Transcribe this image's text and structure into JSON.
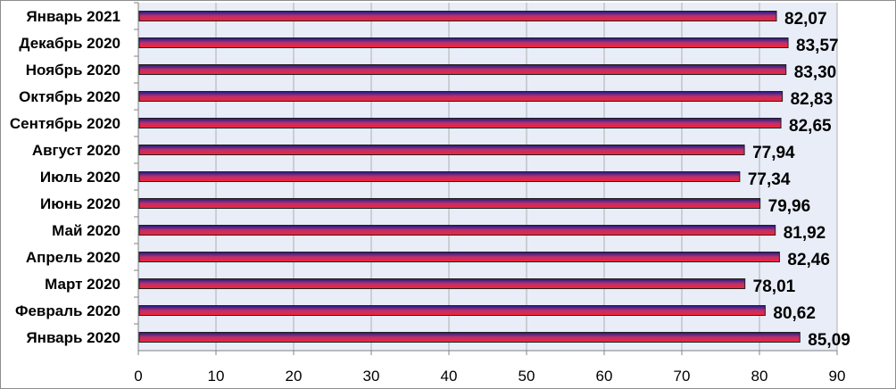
{
  "chart_data": {
    "type": "bar",
    "orientation": "horizontal",
    "categories": [
      "Январь 2021",
      "Декабрь 2020",
      "Ноябрь 2020",
      "Октябрь 2020",
      "Сентябрь 2020",
      "Август 2020",
      "Июль 2020",
      "Июнь 2020",
      "Май 2020",
      "Апрель 2020",
      "Март 2020",
      "Февраль 2020",
      "Январь 2020"
    ],
    "values": [
      82.07,
      83.57,
      83.3,
      82.83,
      82.65,
      77.94,
      77.34,
      79.96,
      81.92,
      82.46,
      78.01,
      80.62,
      85.09
    ],
    "value_labels": [
      "82,07",
      "83,57",
      "83,30",
      "82,83",
      "82,65",
      "77,94",
      "77,34",
      "79,96",
      "81,92",
      "82,46",
      "78,01",
      "80,62",
      "85,09"
    ],
    "xlim": [
      0,
      90
    ],
    "xticks": [
      "0",
      "10",
      "20",
      "30",
      "40",
      "50",
      "60",
      "70",
      "80",
      "90"
    ],
    "title": "",
    "xlabel": "",
    "ylabel": "",
    "grid": "vertical",
    "legend": "none",
    "colors": {
      "bar_top": "#1a1a8c",
      "bar_mid": "#b8326e",
      "bar_bottom": "#ff2030",
      "bar_edge": "#202020",
      "plot_background": "#e8edf7",
      "grid": "#b0b0b0"
    }
  }
}
